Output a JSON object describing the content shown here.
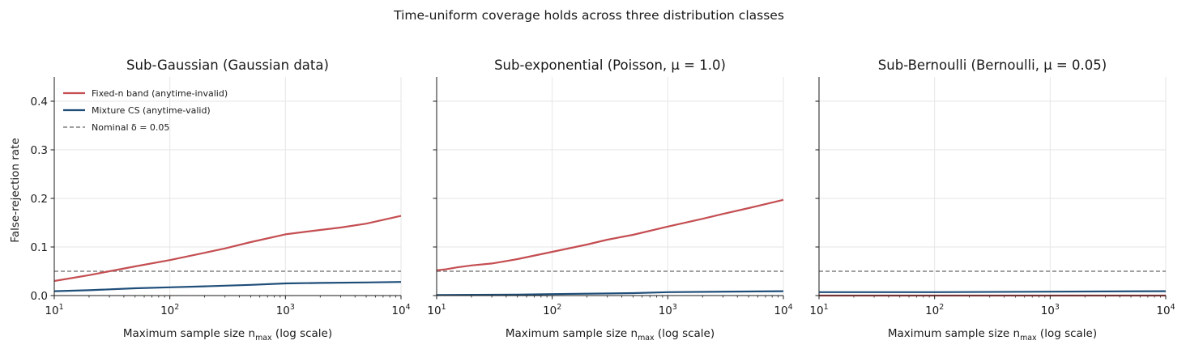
{
  "figure": {
    "suptitle": "Time-uniform coverage holds across three distribution classes",
    "ylabel": "False-rejection rate",
    "xlabel": "Maximum sample size n_max (log scale)"
  },
  "colors": {
    "fixed": "#c44e52",
    "mixture": "#1f4e79",
    "nominal": "#808080",
    "grid": "#e6e6e6",
    "axis": "#1a1a1a"
  },
  "legend": {
    "items": [
      {
        "label": "Fixed-n band (anytime-invalid)",
        "style": "solid",
        "color_key": "fixed"
      },
      {
        "label": "Mixture CS (anytime-valid)",
        "style": "solid",
        "color_key": "mixture"
      },
      {
        "label": "Nominal δ = 0.05",
        "style": "dashed",
        "color_key": "nominal"
      }
    ]
  },
  "chart_data": [
    {
      "type": "line",
      "title": "Sub-Gaussian (Gaussian data)",
      "xscale": "log",
      "xlim": [
        10,
        10000
      ],
      "ylim": [
        0,
        0.45
      ],
      "xticks": [
        10,
        100,
        1000,
        10000
      ],
      "xtick_labels": [
        "10^1",
        "10^2",
        "10^3",
        "10^4"
      ],
      "yticks": [
        0.0,
        0.1,
        0.2,
        0.3,
        0.4
      ],
      "ytick_labels": [
        "0.0",
        "0.1",
        "0.2",
        "0.3",
        "0.4"
      ],
      "grid": true,
      "legend_position": "top-left",
      "hline": {
        "y": 0.05,
        "label": "Nominal δ = 0.05"
      },
      "series": [
        {
          "name": "Fixed-n band (anytime-invalid)",
          "x": [
            10,
            20,
            30,
            50,
            100,
            200,
            300,
            500,
            1000,
            2000,
            3000,
            5000,
            10000
          ],
          "y": [
            0.03,
            0.042,
            0.05,
            0.06,
            0.073,
            0.088,
            0.097,
            0.11,
            0.126,
            0.135,
            0.14,
            0.148,
            0.164
          ]
        },
        {
          "name": "Mixture CS (anytime-valid)",
          "x": [
            10,
            20,
            50,
            100,
            200,
            500,
            1000,
            2000,
            5000,
            10000
          ],
          "y": [
            0.009,
            0.011,
            0.015,
            0.017,
            0.019,
            0.022,
            0.025,
            0.026,
            0.027,
            0.028
          ]
        }
      ]
    },
    {
      "type": "line",
      "title": "Sub-exponential (Poisson, μ = 1.0)",
      "xscale": "log",
      "xlim": [
        10,
        10000
      ],
      "ylim": [
        0,
        0.45
      ],
      "xticks": [
        10,
        100,
        1000,
        10000
      ],
      "xtick_labels": [
        "10^1",
        "10^2",
        "10^3",
        "10^4"
      ],
      "yticks": [
        0.0,
        0.1,
        0.2,
        0.3,
        0.4
      ],
      "grid": true,
      "hline": {
        "y": 0.05
      },
      "series": [
        {
          "name": "Fixed-n band (anytime-invalid)",
          "x": [
            10,
            12,
            15,
            20,
            30,
            50,
            100,
            200,
            300,
            500,
            1000,
            2000,
            3000,
            5000,
            10000
          ],
          "y": [
            0.052,
            0.054,
            0.058,
            0.062,
            0.066,
            0.075,
            0.09,
            0.105,
            0.115,
            0.125,
            0.142,
            0.158,
            0.168,
            0.18,
            0.197
          ]
        },
        {
          "name": "Mixture CS (anytime-valid)",
          "x": [
            10,
            50,
            100,
            500,
            1000,
            10000
          ],
          "y": [
            0.001,
            0.002,
            0.003,
            0.005,
            0.007,
            0.009
          ]
        }
      ]
    },
    {
      "type": "line",
      "title": "Sub-Bernoulli (Bernoulli, μ = 0.05)",
      "xscale": "log",
      "xlim": [
        10,
        10000
      ],
      "ylim": [
        0,
        0.45
      ],
      "xticks": [
        10,
        100,
        1000,
        10000
      ],
      "xtick_labels": [
        "10^1",
        "10^2",
        "10^3",
        "10^4"
      ],
      "yticks": [
        0.0,
        0.1,
        0.2,
        0.3,
        0.4
      ],
      "grid": true,
      "hline": {
        "y": 0.05
      },
      "series": [
        {
          "name": "Fixed-n band (anytime-invalid)",
          "x": [
            10,
            100,
            1000,
            10000
          ],
          "y": [
            0.0,
            0.0,
            0.0,
            0.0
          ]
        },
        {
          "name": "Mixture CS (anytime-valid)",
          "x": [
            10,
            100,
            1000,
            10000
          ],
          "y": [
            0.007,
            0.007,
            0.008,
            0.009
          ]
        }
      ]
    }
  ]
}
